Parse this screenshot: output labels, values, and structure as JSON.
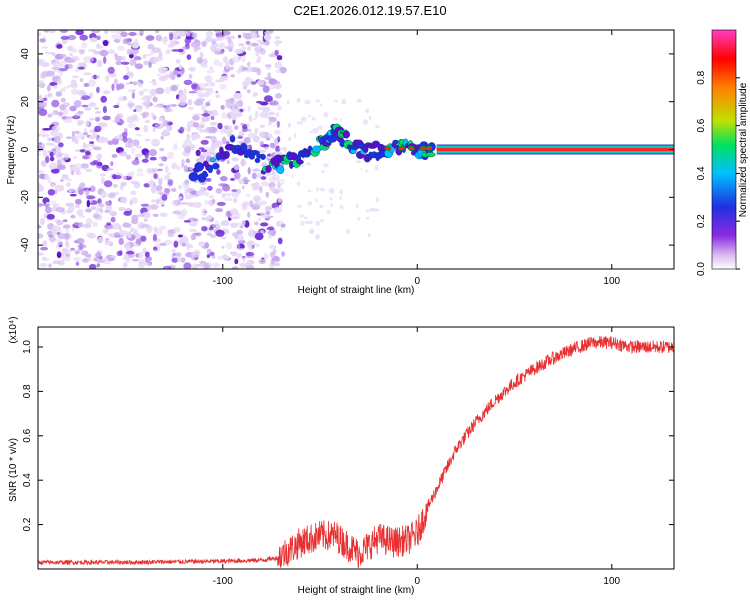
{
  "title": "C2E1.2026.012.19.57.E10",
  "chart_data": [
    {
      "type": "heatmap",
      "name": "spectrogram",
      "xlabel": "Height of straight line (km)",
      "ylabel": "Frequency (Hz)",
      "xlim": [
        -195,
        132
      ],
      "ylim": [
        -50,
        50
      ],
      "xticks": [
        -100,
        0,
        100
      ],
      "xtick_labels": [
        "-100",
        "0",
        "100"
      ],
      "yticks": [
        -40,
        -20,
        0,
        20,
        40
      ],
      "ytick_labels": [
        "-40",
        "-20",
        "0",
        "20",
        "40"
      ],
      "colorbar": {
        "label": "Normalized spectral amplitude",
        "range": [
          0.0,
          1.0
        ],
        "ticks": [
          0.0,
          0.2,
          0.4,
          0.6,
          0.8
        ],
        "tick_labels": [
          "0.0",
          "0.2",
          "0.4",
          "0.6",
          "0.8"
        ],
        "colors": [
          "#ffffff",
          "#d8b8f0",
          "#8a2be2",
          "#2030e0",
          "#00c0ff",
          "#00e060",
          "#c0e000",
          "#ff8000",
          "#ff0000",
          "#ff40c0"
        ]
      },
      "features": {
        "noise_region_x": [
          -195,
          -72
        ],
        "signal_line_frequency": 0,
        "signal_start_x": 10,
        "ridge_points": [
          [
            -115,
            -12
          ],
          [
            -95,
            2
          ],
          [
            -75,
            -7
          ],
          [
            -62,
            -5
          ],
          [
            -50,
            2
          ],
          [
            -42,
            8
          ],
          [
            -35,
            3
          ],
          [
            -25,
            -1
          ],
          [
            -12,
            1
          ],
          [
            0,
            -1
          ],
          [
            8,
            0
          ]
        ]
      },
      "grid": false
    },
    {
      "type": "line",
      "name": "snr",
      "xlabel": "Height of straight line (km)",
      "ylabel": "SNR (10 * v/v)",
      "y_multiplier": "(x10⁴)",
      "xlim": [
        -195,
        132
      ],
      "ylim": [
        0.0,
        1.09
      ],
      "xticks": [
        -100,
        0,
        100
      ],
      "xtick_labels": [
        "-100",
        "0",
        "100"
      ],
      "yticks": [
        0.2,
        0.4,
        0.6,
        0.8,
        1.0
      ],
      "ytick_labels": [
        "0.2",
        "0.4",
        "0.6",
        "0.8",
        "1.0"
      ],
      "series": [
        {
          "name": "SNR",
          "color": "#e83030",
          "x": [
            -195,
            -150,
            -100,
            -80,
            -72,
            -60,
            -50,
            -42,
            -35,
            -30,
            -20,
            -12,
            -5,
            0,
            5,
            10,
            15,
            20,
            25,
            30,
            40,
            50,
            60,
            70,
            80,
            90,
            100,
            110,
            120,
            132
          ],
          "y": [
            0.03,
            0.03,
            0.035,
            0.04,
            0.05,
            0.12,
            0.15,
            0.15,
            0.1,
            0.07,
            0.14,
            0.12,
            0.13,
            0.16,
            0.27,
            0.36,
            0.45,
            0.54,
            0.6,
            0.66,
            0.76,
            0.84,
            0.9,
            0.95,
            0.99,
            1.02,
            1.02,
            1.0,
            1.0,
            1.0
          ]
        }
      ],
      "grid": false
    }
  ]
}
